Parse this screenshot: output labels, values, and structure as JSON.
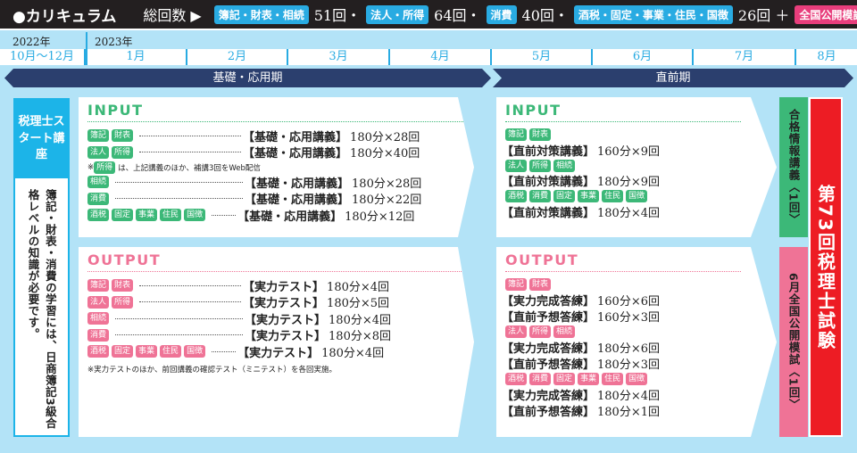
{
  "header": {
    "title": "●カリキュラム",
    "total_label": "総回数 ▶",
    "groups": [
      {
        "tag": "簿記・財表・相続",
        "count": "51回・"
      },
      {
        "tag": "法人・所得",
        "count": "64回・"
      },
      {
        "tag": "消費",
        "count": "40回・"
      },
      {
        "tag": "酒税・固定・事業・住民・国徴",
        "count": "26回 ＋"
      }
    ],
    "mock_tag": "全国公開模試"
  },
  "timeline": {
    "years": [
      "2022年",
      "2023年"
    ],
    "months": [
      "10月～12月",
      "1月",
      "2月",
      "3月",
      "4月",
      "5月",
      "6月",
      "7月",
      "8月"
    ],
    "phases": [
      "基礎・応用期",
      "直前期"
    ]
  },
  "start_course": {
    "title": "税理士スタート講座",
    "note": "簿記・財表・消費の学習には、日商簿記3級合格レベルの知識が必要です。"
  },
  "basic": {
    "input": {
      "heading": "INPUT",
      "rows": [
        {
          "tags": [
            "簿記",
            "財表"
          ],
          "kind": "【基礎・応用講義】",
          "qty": "180分×28回"
        },
        {
          "tags": [
            "法人",
            "所得"
          ],
          "kind": "【基礎・応用講義】",
          "qty": "180分×40回"
        },
        {
          "note_prefix": "※",
          "note_tag": "所得",
          "note": "は、上記講義のほか、補講3回をWeb配信"
        },
        {
          "tags": [
            "相続"
          ],
          "kind": "【基礎・応用講義】",
          "qty": "180分×28回"
        },
        {
          "tags": [
            "消費"
          ],
          "kind": "【基礎・応用講義】",
          "qty": "180分×22回"
        },
        {
          "tags": [
            "酒税",
            "固定",
            "事業",
            "住民",
            "国徴"
          ],
          "kind": "【基礎・応用講義】",
          "qty": "180分×12回"
        }
      ]
    },
    "output": {
      "heading": "OUTPUT",
      "rows": [
        {
          "tags": [
            "簿記",
            "財表"
          ],
          "kind": "【実力テスト】",
          "qty": "180分×4回"
        },
        {
          "tags": [
            "法人",
            "所得"
          ],
          "kind": "【実力テスト】",
          "qty": "180分×5回"
        },
        {
          "tags": [
            "相続"
          ],
          "kind": "【実力テスト】",
          "qty": "180分×4回"
        },
        {
          "tags": [
            "消費"
          ],
          "kind": "【実力テスト】",
          "qty": "180分×8回"
        },
        {
          "tags": [
            "酒税",
            "固定",
            "事業",
            "住民",
            "国徴"
          ],
          "kind": "【実力テスト】",
          "qty": "180分×4回"
        }
      ],
      "note": "※実力テストのほか、前回講義の確認テスト（ミニテスト）を各回実施。"
    }
  },
  "final": {
    "input": {
      "heading": "INPUT",
      "groups": [
        {
          "tags": [
            "簿記",
            "財表"
          ],
          "lines": [
            {
              "kind": "【直前対策講義】",
              "qty": "160分×9回"
            }
          ]
        },
        {
          "tags": [
            "法人",
            "所得",
            "相続"
          ],
          "lines": [
            {
              "kind": "【直前対策講義】",
              "qty": "180分×9回"
            }
          ]
        },
        {
          "tags": [
            "酒税",
            "消費",
            "固定",
            "事業",
            "住民",
            "国徴"
          ],
          "lines": [
            {
              "kind": "【直前対策講義】",
              "qty": "180分×4回"
            }
          ]
        }
      ]
    },
    "output": {
      "heading": "OUTPUT",
      "groups": [
        {
          "tags": [
            "簿記",
            "財表"
          ],
          "lines": [
            {
              "kind": "【実力完成答練】",
              "qty": "160分×6回"
            },
            {
              "kind": "【直前予想答練】",
              "qty": "160分×3回"
            }
          ]
        },
        {
          "tags": [
            "法人",
            "所得",
            "相続"
          ],
          "lines": [
            {
              "kind": "【実力完成答練】",
              "qty": "180分×6回"
            },
            {
              "kind": "【直前予想答練】",
              "qty": "180分×3回"
            }
          ]
        },
        {
          "tags": [
            "酒税",
            "消費",
            "固定",
            "事業",
            "住民",
            "国徴"
          ],
          "lines": [
            {
              "kind": "【実力完成答練】",
              "qty": "180分×4回"
            },
            {
              "kind": "【直前予想答練】",
              "qty": "180分×1回"
            }
          ]
        }
      ]
    }
  },
  "side": {
    "info_lecture": "合格情報講義〈1回〉",
    "june_mock": "6月全国公開模試〈1回〉",
    "exam": "第73回税理士試験"
  },
  "colors": {
    "header_bg": "#231f20",
    "accent_blue": "#29abe2",
    "navy": "#2b3f6e",
    "input_green": "#3cb878",
    "output_pink": "#ef7396",
    "exam_red": "#ed1c24",
    "bg_blue": "#b3e3f7"
  }
}
